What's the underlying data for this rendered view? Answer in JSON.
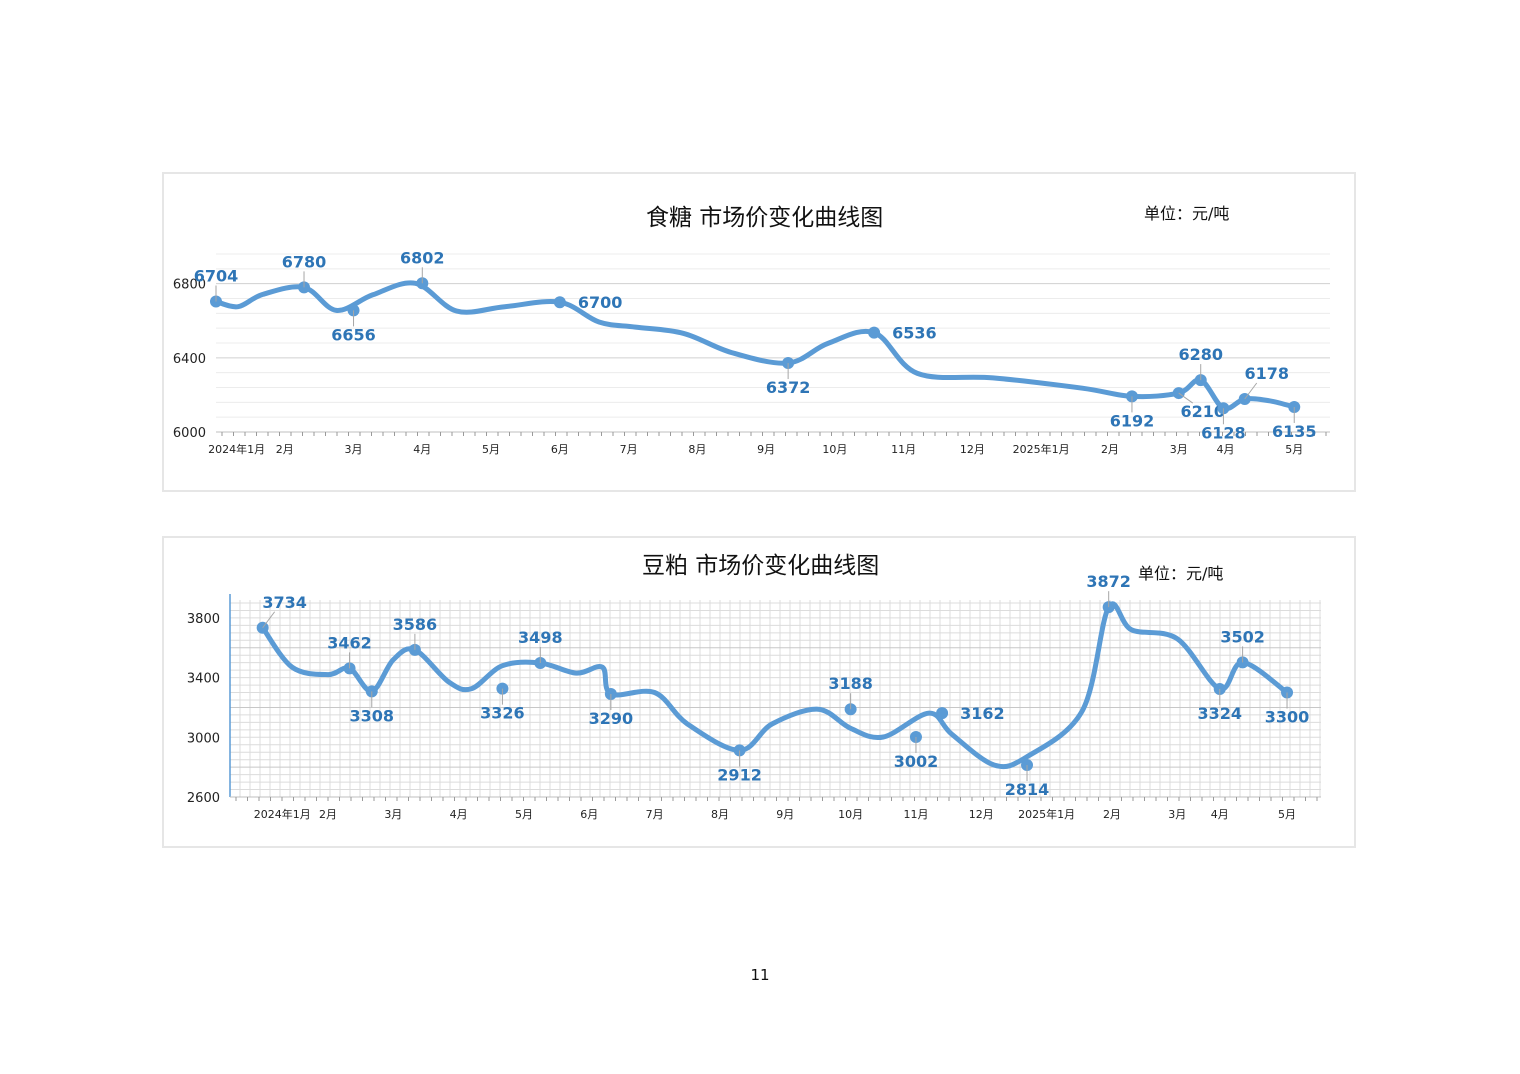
{
  "page_number": "11",
  "chart_data": [
    {
      "id": "sugar",
      "type": "line",
      "title": "食糖  市场价变化曲线图",
      "unit_label": "单位：元/吨",
      "line_color": "#5b9bd5",
      "label_color": "#2e75b6",
      "ylim": [
        6000,
        6960
      ],
      "y_ticks": [
        6000,
        6400,
        6800
      ],
      "x_range": [
        0,
        16.2
      ],
      "grid": "horizontal",
      "month_ticks": [
        {
          "x": 0.3,
          "label": "2024年1月"
        },
        {
          "x": 1.0,
          "label": "2月"
        },
        {
          "x": 2.0,
          "label": "3月"
        },
        {
          "x": 3.0,
          "label": "4月"
        },
        {
          "x": 4.0,
          "label": "5月"
        },
        {
          "x": 5.0,
          "label": "6月"
        },
        {
          "x": 6.0,
          "label": "7月"
        },
        {
          "x": 7.0,
          "label": "8月"
        },
        {
          "x": 8.0,
          "label": "9月"
        },
        {
          "x": 9.0,
          "label": "10月"
        },
        {
          "x": 10.0,
          "label": "11月"
        },
        {
          "x": 11.0,
          "label": "12月"
        },
        {
          "x": 12.0,
          "label": "2025年1月"
        },
        {
          "x": 13.0,
          "label": "2月"
        },
        {
          "x": 14.0,
          "label": "3月"
        },
        {
          "x": 14.68,
          "label": "4月"
        },
        {
          "x": 15.68,
          "label": "5月"
        }
      ],
      "x": [
        0.0,
        0.32,
        0.68,
        1.28,
        1.75,
        2.28,
        2.9,
        3.5,
        4.2,
        5.0,
        5.57,
        6.1,
        6.8,
        7.5,
        8.32,
        8.9,
        9.57,
        10.2,
        11.3,
        12.6,
        13.32,
        14.0,
        14.32,
        14.65,
        14.96,
        15.32,
        15.68
      ],
      "y": [
        6704,
        6676,
        6742,
        6780,
        6656,
        6740,
        6802,
        6652,
        6676,
        6700,
        6593,
        6566,
        6532,
        6428,
        6372,
        6478,
        6536,
        6316,
        6292,
        6236,
        6192,
        6210,
        6280,
        6128,
        6178,
        6168,
        6135
      ],
      "points": [
        {
          "x": 0.0,
          "value": "6704",
          "pos": "above"
        },
        {
          "x": 1.28,
          "value": "6780",
          "pos": "above"
        },
        {
          "x": 2.0,
          "value": "6656",
          "pos": "below"
        },
        {
          "x": 3.0,
          "value": "6802",
          "pos": "above"
        },
        {
          "x": 5.0,
          "value": "6700",
          "pos": "right"
        },
        {
          "x": 8.32,
          "value": "6372",
          "pos": "below"
        },
        {
          "x": 9.57,
          "value": "6536",
          "pos": "right"
        },
        {
          "x": 13.32,
          "value": "6192",
          "pos": "below"
        },
        {
          "x": 14.0,
          "value": "6210",
          "pos": "below-right"
        },
        {
          "x": 14.32,
          "value": "6280",
          "pos": "above"
        },
        {
          "x": 14.65,
          "value": "6128",
          "pos": "below"
        },
        {
          "x": 14.96,
          "value": "6178",
          "pos": "above-right"
        },
        {
          "x": 15.68,
          "value": "6135",
          "pos": "below"
        }
      ]
    },
    {
      "id": "soybean-meal",
      "type": "line",
      "title": "豆粕  市场价变化曲线图",
      "unit_label": "单位：元/吨",
      "line_color": "#5b9bd5",
      "label_color": "#2e75b6",
      "ylim": [
        2600,
        3920
      ],
      "y_ticks": [
        2600,
        3000,
        3400,
        3800
      ],
      "x_range": [
        -0.5,
        16.2
      ],
      "grid": "full",
      "month_ticks": [
        {
          "x": 0.3,
          "label": "2024年1月"
        },
        {
          "x": 1.0,
          "label": "2月"
        },
        {
          "x": 2.0,
          "label": "3月"
        },
        {
          "x": 3.0,
          "label": "4月"
        },
        {
          "x": 4.0,
          "label": "5月"
        },
        {
          "x": 5.0,
          "label": "6月"
        },
        {
          "x": 6.0,
          "label": "7月"
        },
        {
          "x": 7.0,
          "label": "8月"
        },
        {
          "x": 8.0,
          "label": "9月"
        },
        {
          "x": 9.0,
          "label": "10月"
        },
        {
          "x": 10.0,
          "label": "11月"
        },
        {
          "x": 11.0,
          "label": "12月"
        },
        {
          "x": 12.0,
          "label": "2025年1月"
        },
        {
          "x": 13.0,
          "label": "2月"
        },
        {
          "x": 14.0,
          "label": "3月"
        },
        {
          "x": 14.65,
          "label": "4月"
        },
        {
          "x": 15.68,
          "label": "5月"
        }
      ],
      "x": [
        0.0,
        0.45,
        1.0,
        1.33,
        1.67,
        2.0,
        2.33,
        2.85,
        3.2,
        3.67,
        4.25,
        4.8,
        5.2,
        5.33,
        6.0,
        6.5,
        7.3,
        7.8,
        8.5,
        9.0,
        9.5,
        10.2,
        10.55,
        11.2,
        11.7,
        12.55,
        12.95,
        13.3,
        14.0,
        14.65,
        15.0,
        15.68
      ],
      "y": [
        3734,
        3470,
        3420,
        3462,
        3308,
        3520,
        3586,
        3370,
        3326,
        3480,
        3498,
        3430,
        3470,
        3290,
        3300,
        3090,
        2912,
        3090,
        3188,
        3060,
        3002,
        3162,
        3020,
        2814,
        2870,
        3180,
        3872,
        3720,
        3660,
        3324,
        3502,
        3300
      ],
      "points": [
        {
          "x": 0.0,
          "value": "3734",
          "pos": "above-right"
        },
        {
          "x": 1.33,
          "value": "3462",
          "pos": "above"
        },
        {
          "x": 1.67,
          "value": "3308",
          "pos": "below"
        },
        {
          "x": 2.33,
          "value": "3586",
          "pos": "above"
        },
        {
          "x": 3.67,
          "value": "3326",
          "pos": "below"
        },
        {
          "x": 4.25,
          "value": "3498",
          "pos": "above"
        },
        {
          "x": 5.33,
          "value": "3290",
          "pos": "below"
        },
        {
          "x": 7.3,
          "value": "2912",
          "pos": "below"
        },
        {
          "x": 9.0,
          "value": "3188",
          "pos": "above"
        },
        {
          "x": 10.0,
          "value": "3002",
          "pos": "below"
        },
        {
          "x": 10.4,
          "value": "3162",
          "pos": "right"
        },
        {
          "x": 11.7,
          "value": "2814",
          "pos": "below"
        },
        {
          "x": 12.95,
          "value": "3872",
          "pos": "above"
        },
        {
          "x": 14.65,
          "value": "3324",
          "pos": "below"
        },
        {
          "x": 15.0,
          "value": "3502",
          "pos": "above"
        },
        {
          "x": 15.68,
          "value": "3300",
          "pos": "below"
        }
      ]
    }
  ]
}
